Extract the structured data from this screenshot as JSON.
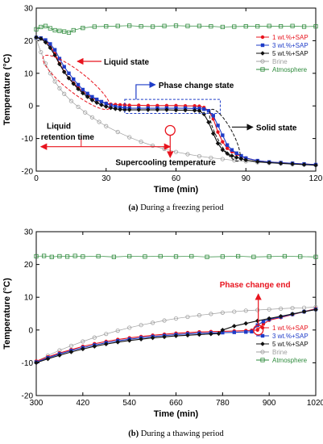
{
  "chart_data": [
    {
      "type": "line",
      "caption_bold": "(a)",
      "caption_rest": " During a freezing period",
      "xlabel": "Time (min)",
      "ylabel": "Temperature (°C)",
      "xlim": [
        0,
        120
      ],
      "ylim": [
        -20,
        30
      ],
      "xticks": [
        "0",
        "30",
        "60",
        "90",
        "120"
      ],
      "yticks": [
        "-20",
        "-10",
        "0",
        "10",
        "20",
        "30"
      ],
      "legend_position": "top-right",
      "series": [
        {
          "name": "1 wt.%+SAP",
          "color": "#e8141e",
          "marker": "circle-filled",
          "x": [
            0,
            2,
            4,
            6,
            8,
            10,
            12,
            14,
            16,
            18,
            20,
            22,
            24,
            26,
            28,
            30,
            32,
            34,
            36,
            38,
            40,
            44,
            48,
            52,
            56,
            60,
            64,
            68,
            70,
            72,
            74,
            76,
            78,
            80,
            82,
            84,
            86,
            88,
            90,
            95,
            100,
            105,
            110,
            115,
            120
          ],
          "y": [
            21,
            20.8,
            20,
            18.5,
            16,
            13,
            10.5,
            8.5,
            7,
            5.6,
            4.4,
            3.4,
            2.5,
            1.8,
            1.2,
            0.8,
            0.5,
            0.4,
            0.3,
            0.3,
            0.2,
            0.2,
            0.1,
            0.1,
            0.1,
            0.1,
            0,
            0,
            -0.1,
            -0.5,
            -1.5,
            -4,
            -8,
            -11,
            -13,
            -14,
            -14.8,
            -15.5,
            -16,
            -16.8,
            -17.2,
            -17.4,
            -17.6,
            -17.8,
            -18
          ]
        },
        {
          "name": "3 wt.%+SAP",
          "color": "#1e3cc8",
          "marker": "square-filled",
          "x": [
            0,
            2,
            4,
            6,
            8,
            10,
            12,
            14,
            16,
            18,
            20,
            22,
            24,
            26,
            28,
            30,
            32,
            34,
            36,
            38,
            40,
            44,
            48,
            52,
            56,
            60,
            64,
            68,
            70,
            72,
            74,
            76,
            78,
            80,
            82,
            84,
            86,
            88,
            90,
            95,
            100,
            105,
            110,
            115,
            120
          ],
          "y": [
            21,
            20.8,
            20.2,
            19,
            17.2,
            14.5,
            12,
            10,
            8.2,
            6.5,
            5,
            3.8,
            2.8,
            2,
            1.3,
            0.7,
            0.2,
            -0.2,
            -0.5,
            -0.6,
            -0.7,
            -0.7,
            -0.7,
            -0.7,
            -0.7,
            -0.7,
            -0.7,
            -0.8,
            -0.8,
            -1,
            -1.5,
            -3,
            -6,
            -9,
            -12,
            -13.5,
            -14.5,
            -15.3,
            -16,
            -16.8,
            -17.2,
            -17.4,
            -17.6,
            -17.8,
            -18
          ]
        },
        {
          "name": "5 wt.%+SAP",
          "color": "#111111",
          "marker": "diamond-filled",
          "x": [
            0,
            2,
            4,
            6,
            8,
            10,
            12,
            14,
            16,
            18,
            20,
            22,
            24,
            26,
            28,
            30,
            32,
            34,
            36,
            38,
            40,
            44,
            48,
            52,
            56,
            60,
            64,
            68,
            70,
            72,
            74,
            76,
            78,
            80,
            82,
            84,
            86,
            88,
            90,
            95,
            100,
            105,
            110,
            115,
            120
          ],
          "y": [
            21,
            20.6,
            19.5,
            17.8,
            15.5,
            12.8,
            10.4,
            8.5,
            6.8,
            5.2,
            3.9,
            2.8,
            1.8,
            1,
            0.3,
            -0.2,
            -0.6,
            -0.9,
            -1.1,
            -1.2,
            -1.2,
            -1.2,
            -1.2,
            -1.2,
            -1.2,
            -1.3,
            -1.3,
            -1.4,
            -1.5,
            -2.5,
            -5,
            -8.5,
            -11.5,
            -13.5,
            -14.6,
            -15.3,
            -15.8,
            -16.2,
            -16.6,
            -17.1,
            -17.4,
            -17.6,
            -17.8,
            -18,
            -18.2
          ]
        },
        {
          "name": "Brine",
          "color": "#a0a0a0",
          "marker": "circle-open",
          "x": [
            0,
            2,
            4,
            6,
            8,
            10,
            12,
            15,
            18,
            21,
            24,
            27,
            30,
            35,
            40,
            45,
            50,
            55,
            60,
            65,
            70,
            75,
            80,
            85,
            90,
            95,
            100,
            105,
            110,
            115,
            120
          ],
          "y": [
            20.5,
            16.5,
            13,
            10,
            7.5,
            5.4,
            3.7,
            1.5,
            -0.3,
            -2,
            -3.5,
            -4.9,
            -6.2,
            -8,
            -9.6,
            -11,
            -12.2,
            -13.2,
            -14.1,
            -14.8,
            -15.4,
            -15.9,
            -16.3,
            -16.7,
            -17,
            -17.3,
            -17.5,
            -17.7,
            -17.9,
            -18,
            -18.1
          ]
        },
        {
          "name": "Atmosphere",
          "color": "#2e8b3c",
          "marker": "square-open",
          "x": [
            0,
            2,
            4,
            6,
            8,
            10,
            12,
            14,
            16,
            20,
            25,
            30,
            35,
            40,
            45,
            50,
            55,
            60,
            65,
            70,
            75,
            80,
            85,
            90,
            95,
            100,
            105,
            110,
            115,
            120
          ],
          "y": [
            23.5,
            24.2,
            24.5,
            23.8,
            23.2,
            23,
            22.8,
            22.5,
            23.2,
            23.9,
            24.3,
            24.4,
            24.5,
            24.6,
            24.4,
            24.3,
            24.5,
            24.6,
            24.5,
            24.5,
            24.4,
            24.2,
            24.3,
            24.4,
            24.4,
            24.5,
            24.4,
            24.5,
            24.3,
            24.4
          ]
        }
      ],
      "annotations": {
        "liquid_state": "Liquid state",
        "phase_change_state": "Phase change state",
        "solid_state": "Solid state",
        "liquid_retention_time_1": "Liquid",
        "liquid_retention_time_2": "retention time",
        "supercooling_temperature": "Supercooling temperature"
      }
    },
    {
      "type": "line",
      "caption_bold": "(b)",
      "caption_rest": " During a thawing period",
      "xlabel": "Time (min)",
      "ylabel": "Temperature (°C)",
      "xlim": [
        300,
        1020
      ],
      "ylim": [
        -20,
        30
      ],
      "xticks": [
        "300",
        "420",
        "540",
        "660",
        "780",
        "900",
        "1020"
      ],
      "yticks": [
        "-20",
        "-10",
        "0",
        "10",
        "20",
        "30"
      ],
      "legend_position": "bottom-right",
      "series": [
        {
          "name": "1 wt.%+SAP",
          "color": "#e8141e",
          "marker": "circle-filled",
          "x": [
            300,
            330,
            360,
            390,
            420,
            450,
            480,
            510,
            540,
            570,
            600,
            630,
            660,
            690,
            720,
            750,
            780,
            810,
            840,
            855,
            870,
            885,
            900,
            930,
            960,
            990,
            1020
          ],
          "y": [
            -9.5,
            -8.2,
            -7,
            -6,
            -5,
            -4.2,
            -3.5,
            -2.9,
            -2.4,
            -2,
            -1.6,
            -1.3,
            -1,
            -0.8,
            -0.6,
            -0.5,
            -0.4,
            -0.3,
            -0.2,
            -0.1,
            0,
            1.8,
            3,
            3.8,
            4.7,
            5.6,
            6.5
          ]
        },
        {
          "name": "3 wt.%+SAP",
          "color": "#1e3cc8",
          "marker": "square-filled",
          "x": [
            300,
            330,
            360,
            390,
            420,
            450,
            480,
            510,
            540,
            570,
            600,
            630,
            660,
            690,
            720,
            750,
            780,
            810,
            840,
            855,
            870,
            885,
            900,
            930,
            960,
            990,
            1020
          ],
          "y": [
            -9.8,
            -8.5,
            -7.3,
            -6.3,
            -5.4,
            -4.6,
            -3.9,
            -3.3,
            -2.8,
            -2.4,
            -2,
            -1.7,
            -1.4,
            -1.2,
            -1,
            -0.9,
            -0.8,
            -0.7,
            -0.6,
            -0.5,
            1.5,
            2.6,
            3.3,
            4,
            4.8,
            5.6,
            6.3
          ]
        },
        {
          "name": "5 wt.%+SAP",
          "color": "#111111",
          "marker": "diamond-filled",
          "x": [
            300,
            330,
            360,
            390,
            420,
            450,
            480,
            510,
            540,
            570,
            600,
            630,
            660,
            690,
            720,
            750,
            770,
            780,
            810,
            840,
            870,
            900,
            930,
            960,
            990,
            1020
          ],
          "y": [
            -10,
            -8.8,
            -7.7,
            -6.7,
            -5.8,
            -5,
            -4.3,
            -3.7,
            -3.2,
            -2.8,
            -2.4,
            -2.1,
            -1.8,
            -1.6,
            -1.4,
            -1.2,
            -1.1,
            0,
            1.2,
            2,
            2.8,
            3.5,
            4.2,
            4.9,
            5.6,
            6.2
          ]
        },
        {
          "name": "Brine",
          "color": "#a0a0a0",
          "marker": "circle-open",
          "x": [
            300,
            330,
            360,
            390,
            420,
            450,
            480,
            510,
            540,
            570,
            600,
            630,
            660,
            690,
            720,
            750,
            780,
            810,
            840,
            870,
            900,
            930,
            960,
            990,
            1020
          ],
          "y": [
            -9.6,
            -7.8,
            -6.2,
            -4.8,
            -3.5,
            -2.3,
            -1.2,
            -0.2,
            0.7,
            1.5,
            2.2,
            2.9,
            3.5,
            4,
            4.5,
            4.9,
            5.3,
            5.6,
            5.9,
            6.1,
            6.3,
            6.5,
            6.7,
            6.8,
            7
          ]
        },
        {
          "name": "Atmosphere",
          "color": "#2e8b3c",
          "marker": "square-open",
          "x": [
            300,
            320,
            340,
            360,
            380,
            400,
            420,
            460,
            500,
            540,
            580,
            620,
            660,
            700,
            740,
            780,
            820,
            860,
            900,
            940,
            980,
            1020
          ],
          "y": [
            22.5,
            22.6,
            22.3,
            22.5,
            22.4,
            22.6,
            22.4,
            22.5,
            22.3,
            22.5,
            22.4,
            22.5,
            22.4,
            22.5,
            22.3,
            22.4,
            22.5,
            22.3,
            22.4,
            22.5,
            22.4,
            22.3
          ]
        }
      ],
      "annotations": {
        "phase_change_end": "Phase change end"
      }
    }
  ]
}
